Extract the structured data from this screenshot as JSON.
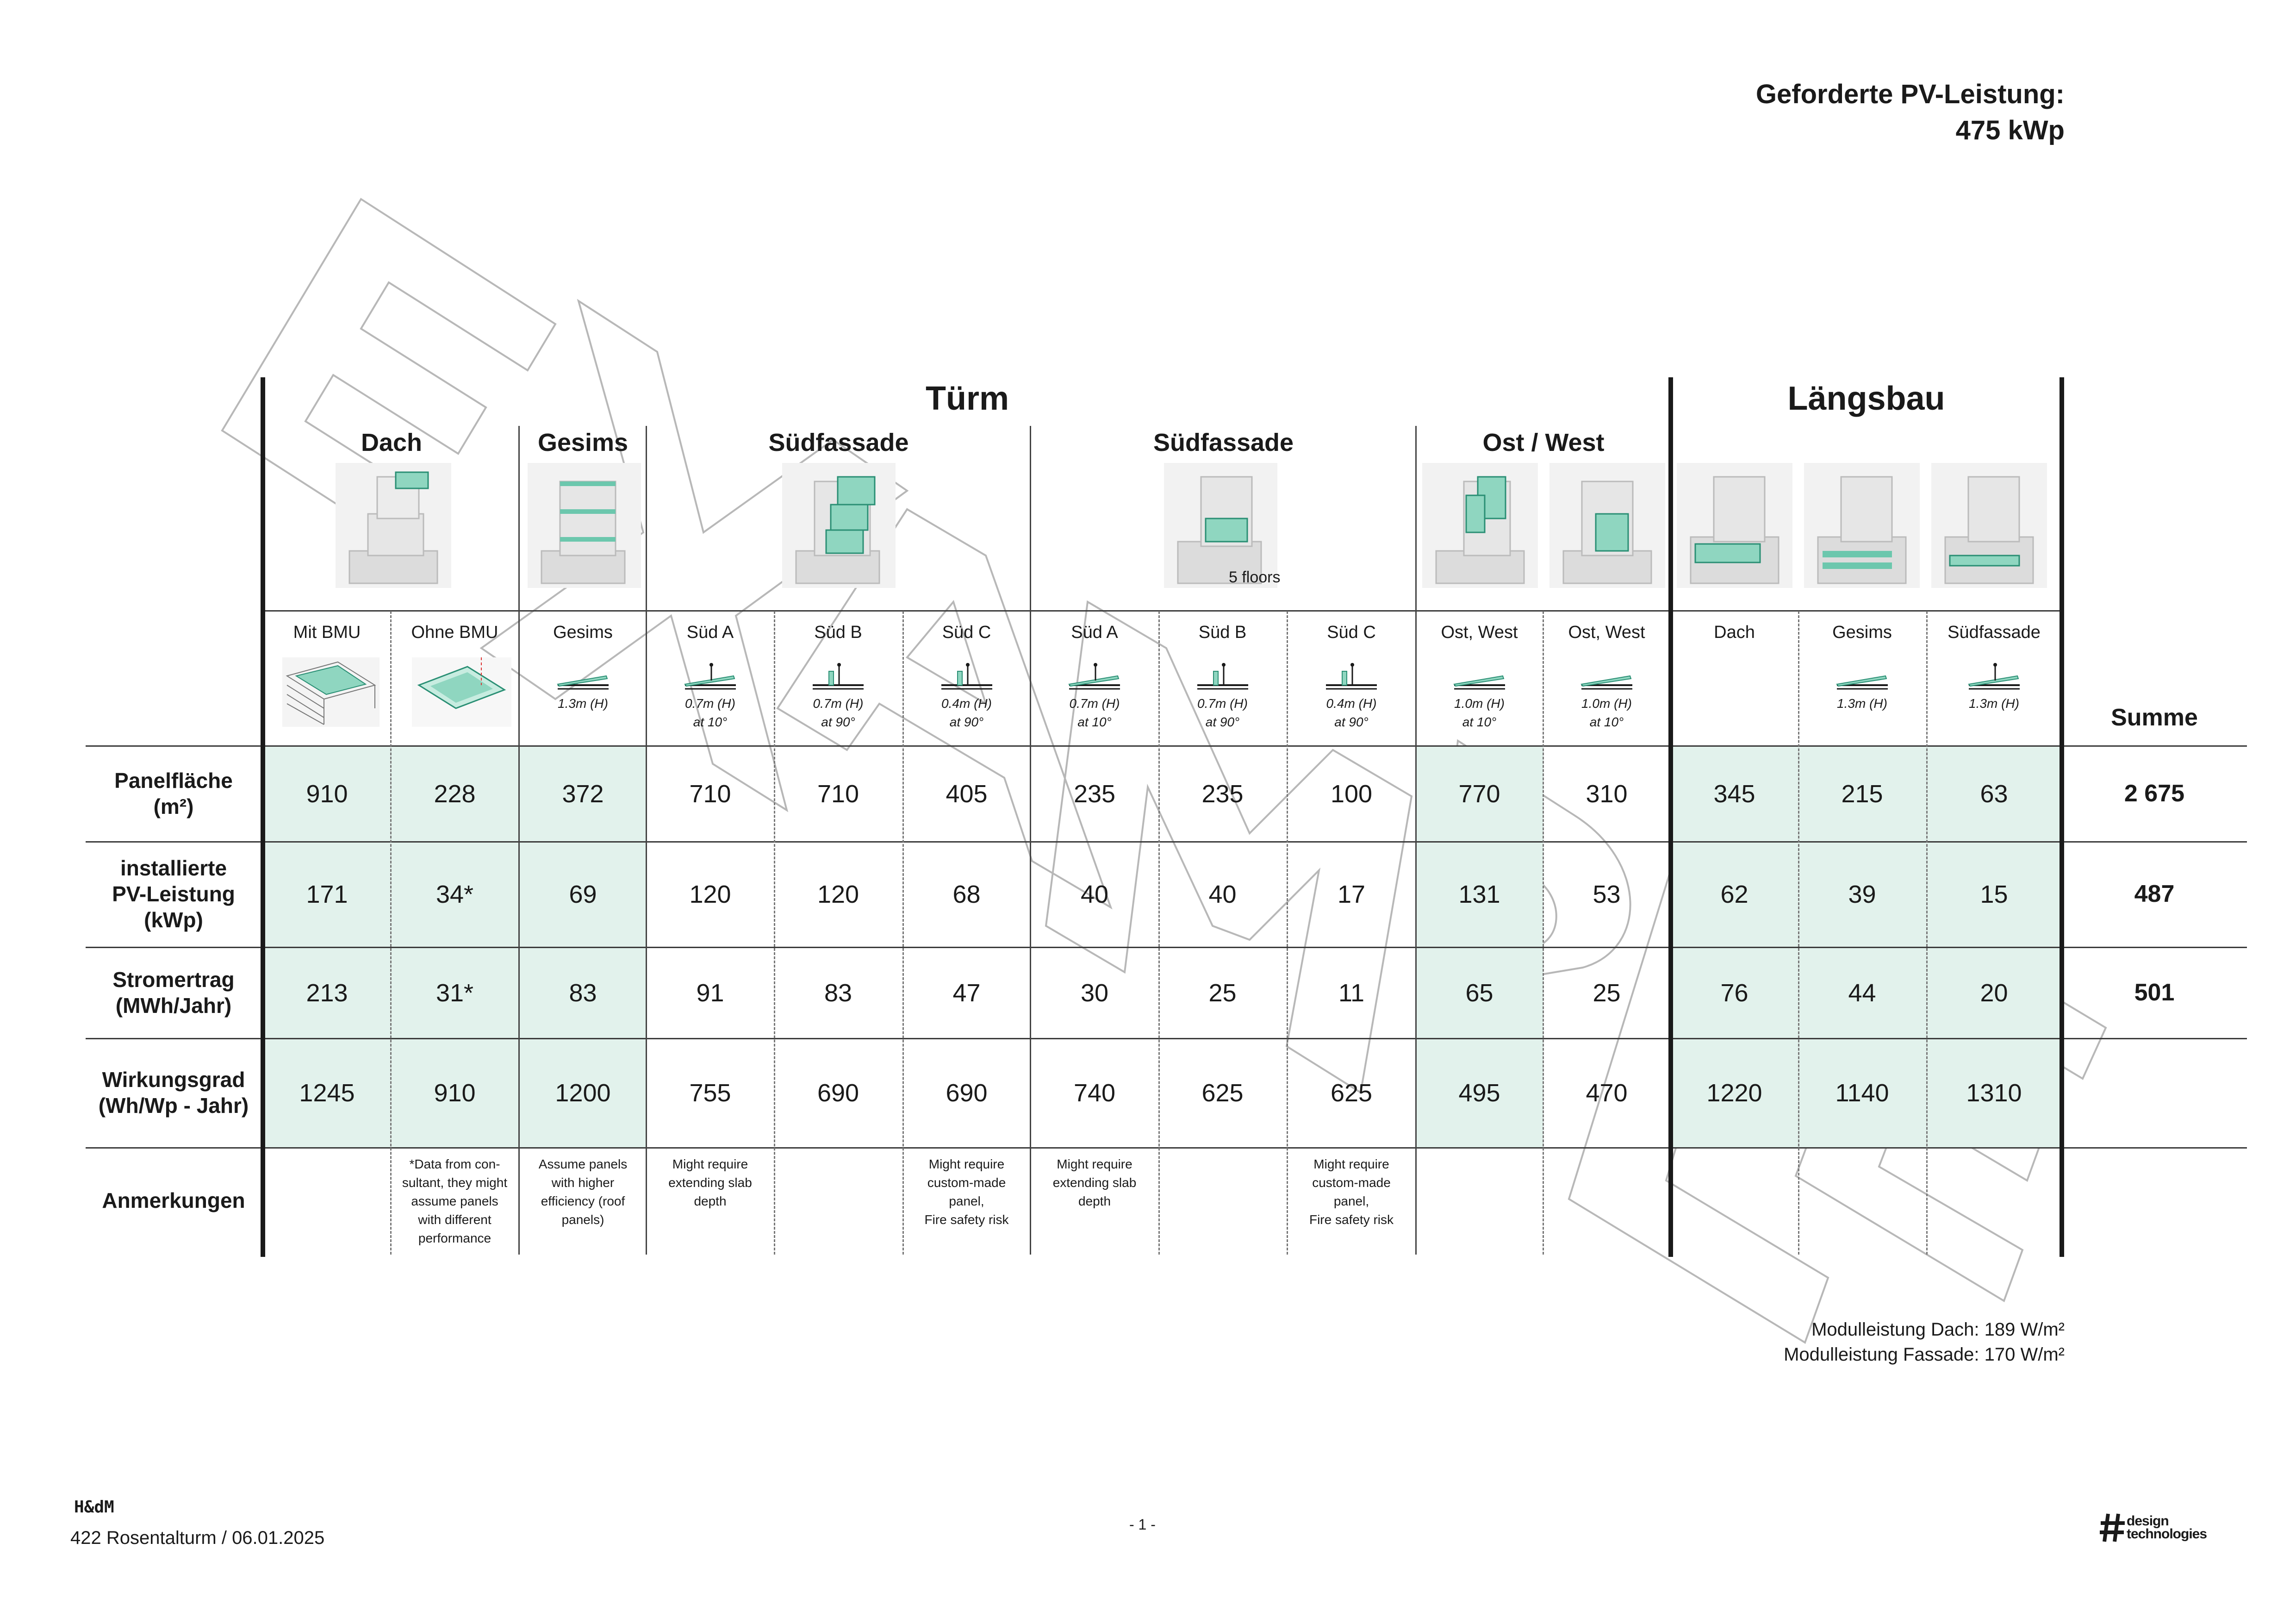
{
  "required": {
    "line1": "Geforderte PV-Leistung:",
    "line2": "475 kWp"
  },
  "groups": {
    "turm": "Türm",
    "laengsbau": "Längsbau"
  },
  "subgroups": {
    "dach": "Dach",
    "gesims": "Gesims",
    "suedfassade1": "Südfassade",
    "suedfassade2": "Südfassade",
    "ostwest": "Ost / West",
    "floors_note": "5 floors"
  },
  "columns": [
    {
      "label": "Mit BMU",
      "spec": ""
    },
    {
      "label": "Ohne BMU",
      "spec": ""
    },
    {
      "label": "Gesims",
      "spec": "1.3m (H)"
    },
    {
      "label": "Süd A",
      "spec": "0.7m (H)\nat 10°"
    },
    {
      "label": "Süd B",
      "spec": "0.7m (H)\nat 90°"
    },
    {
      "label": "Süd C",
      "spec": "0.4m (H)\nat 90°"
    },
    {
      "label": "Süd A",
      "spec": "0.7m (H)\nat 10°"
    },
    {
      "label": "Süd B",
      "spec": "0.7m (H)\nat 90°"
    },
    {
      "label": "Süd C",
      "spec": "0.4m (H)\nat 90°"
    },
    {
      "label": "Ost, West",
      "spec": "1.0m (H)\nat 10°"
    },
    {
      "label": "Ost, West",
      "spec": "1.0m (H)\nat 10°"
    },
    {
      "label": "Dach",
      "spec": ""
    },
    {
      "label": "Gesims",
      "spec": "1.3m (H)"
    },
    {
      "label": "Südfassade",
      "spec": "1.3m (H)"
    }
  ],
  "summe_label": "Summe",
  "rows": [
    {
      "label": "Panelfläche\n(m²)",
      "values": [
        "910",
        "228",
        "372",
        "710",
        "710",
        "405",
        "235",
        "235",
        "100",
        "770",
        "310",
        "345",
        "215",
        "63"
      ],
      "sum": "2 675"
    },
    {
      "label": "installierte\nPV-Leistung\n(kWp)",
      "values": [
        "171",
        "34*",
        "69",
        "120",
        "120",
        "68",
        "40",
        "40",
        "17",
        "131",
        "53",
        "62",
        "39",
        "15"
      ],
      "sum": "487"
    },
    {
      "label": "Stromertrag\n(MWh/Jahr)",
      "values": [
        "213",
        "31*",
        "83",
        "91",
        "83",
        "47",
        "30",
        "25",
        "11",
        "65",
        "25",
        "76",
        "44",
        "20"
      ],
      "sum": "501"
    },
    {
      "label": "Wirkungsgrad\n(Wh/Wp - Jahr)",
      "values": [
        "1245",
        "910",
        "1200",
        "755",
        "690",
        "690",
        "740",
        "625",
        "625",
        "495",
        "470",
        "1220",
        "1140",
        "1310"
      ],
      "sum": ""
    }
  ],
  "notes_label": "Anmerkungen",
  "notes": [
    "",
    "*Data from con-\nsultant, they might\nassume panels\nwith different\nperformance",
    "Assume panels\nwith higher\nefficiency (roof\npanels)",
    "Might require\nextending slab\ndepth",
    "",
    "Might require\ncustom-made\npanel,\nFire safety risk",
    "Might require\nextending slab\ndepth",
    "",
    "Might require\ncustom-made\npanel,\nFire safety risk",
    "",
    "",
    "",
    "",
    ""
  ],
  "module": {
    "dach": "Modulleistung Dach: 189 W/m²",
    "fassade": "Modulleistung Fassade:  170 W/m²"
  },
  "footer": {
    "company": "H&dM",
    "project": "422 Rosentalturm / 06.01.2025",
    "page": "- 1 -",
    "logo_line1": "design",
    "logo_line2": "technologies"
  },
  "watermark": "EXAMPLE",
  "colors": {
    "accent": "#6cc7ad",
    "shade": "#e2f2ec"
  }
}
